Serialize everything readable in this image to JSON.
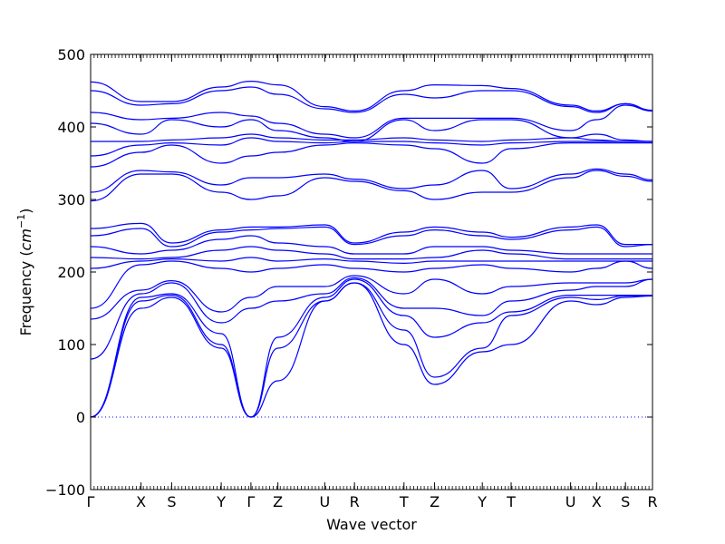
{
  "chart_data": {
    "type": "line",
    "title": "",
    "xlabel": "Wave vector",
    "ylabel_text": "Frequency (",
    "ylabel_unit_base": "cm",
    "ylabel_unit_exp": "−1",
    "ylabel_close": ")",
    "ylim": [
      -100,
      500
    ],
    "yticks": [
      -100,
      0,
      100,
      200,
      300,
      400,
      500
    ],
    "ytick_labels": [
      "−100",
      "0",
      "100",
      "200",
      "300",
      "400",
      "500"
    ],
    "high_symmetry_labels": [
      "Γ",
      "X",
      "S",
      "Y",
      "Γ",
      "Z",
      "U",
      "R",
      "T",
      "Z",
      "Y",
      "T",
      "U",
      "X",
      "S",
      "R"
    ],
    "high_symmetry_positions": [
      0,
      0.0897,
      0.1442,
      0.2324,
      0.2853,
      0.3333,
      0.4167,
      0.4696,
      0.5577,
      0.6122,
      0.6971,
      0.7484,
      0.8542,
      0.9006,
      0.9519,
      1.0
    ],
    "x_range": [
      0,
      1
    ],
    "zero_line": {
      "y": 0,
      "style": "dotted",
      "color": "#0000ff"
    },
    "band_color": "#0000ff",
    "grid": false,
    "series": [
      {
        "x": [
          0,
          0.0897,
          0.1442,
          0.2324,
          0.2853,
          0.3333,
          0.4167,
          0.4696,
          0.5577,
          0.6122,
          0.6971,
          0.7484,
          0.8542,
          0.9006,
          0.9519,
          1.0
        ],
        "values": [
          0,
          150,
          165,
          95,
          0,
          50,
          160,
          185,
          100,
          45,
          90,
          100,
          160,
          155,
          165,
          167
        ]
      },
      {
        "x": [
          0,
          0.0897,
          0.1442,
          0.2324,
          0.2853,
          0.3333,
          0.4167,
          0.4696,
          0.5577,
          0.6122,
          0.6971,
          0.7484,
          0.8542,
          0.9006,
          0.9519,
          1.0
        ],
        "values": [
          0,
          160,
          168,
          100,
          0,
          95,
          160,
          185,
          120,
          55,
          95,
          140,
          165,
          162,
          167,
          167
        ]
      },
      {
        "x": [
          0,
          0.0897,
          0.1442,
          0.2324,
          0.2853,
          0.3333,
          0.4167,
          0.4696,
          0.5577,
          0.6122,
          0.6971,
          0.7484,
          0.8542,
          0.9006,
          0.9519,
          1.0
        ],
        "values": [
          0,
          165,
          170,
          115,
          0,
          110,
          165,
          190,
          140,
          110,
          130,
          145,
          168,
          168,
          168,
          168
        ]
      },
      {
        "x": [
          0,
          0.0897,
          0.1442,
          0.2324,
          0.2853,
          0.3333,
          0.4167,
          0.4696,
          0.5577,
          0.6122,
          0.6971,
          0.7484,
          0.8542,
          0.9006,
          0.9519,
          1.0
        ],
        "values": [
          80,
          170,
          185,
          130,
          150,
          160,
          170,
          192,
          150,
          150,
          140,
          160,
          175,
          180,
          180,
          190
        ]
      },
      {
        "x": [
          0,
          0.0897,
          0.1442,
          0.2324,
          0.2853,
          0.3333,
          0.4167,
          0.4696,
          0.5577,
          0.6122,
          0.6971,
          0.7484,
          0.8542,
          0.9006,
          0.9519,
          1.0
        ],
        "values": [
          135,
          175,
          188,
          145,
          165,
          180,
          180,
          195,
          170,
          190,
          170,
          180,
          185,
          185,
          185,
          190
        ]
      },
      {
        "x": [
          0,
          0.0897,
          0.1442,
          0.2324,
          0.2853,
          0.3333,
          0.4167,
          0.4696,
          0.5577,
          0.6122,
          0.6971,
          0.7484,
          0.8542,
          0.9006,
          0.9519,
          1.0
        ],
        "values": [
          150,
          210,
          215,
          205,
          200,
          205,
          210,
          205,
          200,
          205,
          210,
          205,
          200,
          205,
          215,
          205
        ]
      },
      {
        "x": [
          0,
          0.0897,
          0.1442,
          0.2324,
          0.2853,
          0.3333,
          0.4167,
          0.4696,
          0.5577,
          0.6122,
          0.6971,
          0.7484,
          0.8542,
          0.9006,
          0.9519,
          1.0
        ],
        "values": [
          205,
          215,
          218,
          215,
          220,
          215,
          218,
          215,
          212,
          215,
          215,
          215,
          215,
          215,
          215,
          215
        ]
      },
      {
        "x": [
          0,
          0.0897,
          0.1442,
          0.2324,
          0.2853,
          0.3333,
          0.4167,
          0.4696,
          0.5577,
          0.6122,
          0.6971,
          0.7484,
          0.8542,
          0.9006,
          0.9519,
          1.0
        ],
        "values": [
          220,
          218,
          220,
          230,
          235,
          230,
          225,
          218,
          218,
          220,
          230,
          225,
          218,
          218,
          218,
          218
        ]
      },
      {
        "x": [
          0,
          0.0897,
          0.1442,
          0.2324,
          0.2853,
          0.3333,
          0.4167,
          0.4696,
          0.5577,
          0.6122,
          0.6971,
          0.7484,
          0.8542,
          0.9006,
          0.9519,
          1.0
        ],
        "values": [
          235,
          225,
          230,
          245,
          250,
          240,
          235,
          225,
          225,
          235,
          235,
          230,
          225,
          225,
          225,
          225
        ]
      },
      {
        "x": [
          0,
          0.0897,
          0.1442,
          0.2324,
          0.2853,
          0.3333,
          0.4167,
          0.4696,
          0.5577,
          0.6122,
          0.6971,
          0.7484,
          0.8542,
          0.9006,
          0.9519,
          1.0
        ],
        "values": [
          250,
          260,
          235,
          255,
          258,
          260,
          262,
          238,
          250,
          258,
          250,
          245,
          258,
          262,
          235,
          238
        ]
      },
      {
        "x": [
          0,
          0.0897,
          0.1442,
          0.2324,
          0.2853,
          0.3333,
          0.4167,
          0.4696,
          0.5577,
          0.6122,
          0.6971,
          0.7484,
          0.8542,
          0.9006,
          0.9519,
          1.0
        ],
        "values": [
          260,
          267,
          240,
          258,
          262,
          262,
          265,
          240,
          255,
          262,
          255,
          248,
          262,
          265,
          238,
          238
        ]
      },
      {
        "x": [
          0,
          0.0897,
          0.1442,
          0.2324,
          0.2853,
          0.3333,
          0.4167,
          0.4696,
          0.5577,
          0.6122,
          0.6971,
          0.7484,
          0.8542,
          0.9006,
          0.9519,
          1.0
        ],
        "values": [
          298,
          335,
          335,
          310,
          300,
          305,
          330,
          325,
          312,
          300,
          310,
          310,
          330,
          340,
          332,
          325
        ]
      },
      {
        "x": [
          0,
          0.0897,
          0.1442,
          0.2324,
          0.2853,
          0.3333,
          0.4167,
          0.4696,
          0.5577,
          0.6122,
          0.6971,
          0.7484,
          0.8542,
          0.9006,
          0.9519,
          1.0
        ],
        "values": [
          310,
          340,
          338,
          320,
          330,
          330,
          335,
          328,
          315,
          320,
          340,
          315,
          335,
          342,
          335,
          327
        ]
      },
      {
        "x": [
          0,
          0.0897,
          0.1442,
          0.2324,
          0.2853,
          0.3333,
          0.4167,
          0.4696,
          0.5577,
          0.6122,
          0.6971,
          0.7484,
          0.8542,
          0.9006,
          0.9519,
          1.0
        ],
        "values": [
          345,
          365,
          375,
          350,
          360,
          365,
          375,
          378,
          375,
          370,
          350,
          370,
          378,
          378,
          378,
          378
        ]
      },
      {
        "x": [
          0,
          0.0897,
          0.1442,
          0.2324,
          0.2853,
          0.3333,
          0.4167,
          0.4696,
          0.5577,
          0.6122,
          0.6971,
          0.7484,
          0.8542,
          0.9006,
          0.9519,
          1.0
        ],
        "values": [
          360,
          375,
          378,
          375,
          385,
          380,
          378,
          380,
          380,
          378,
          375,
          378,
          380,
          380,
          380,
          380
        ]
      },
      {
        "x": [
          0,
          0.0897,
          0.1442,
          0.2324,
          0.2853,
          0.3333,
          0.4167,
          0.4696,
          0.5577,
          0.6122,
          0.6971,
          0.7484,
          0.8542,
          0.9006,
          0.9519,
          1.0
        ],
        "values": [
          380,
          380,
          382,
          385,
          390,
          385,
          382,
          382,
          385,
          382,
          380,
          382,
          385,
          382,
          380,
          380
        ]
      },
      {
        "x": [
          0,
          0.0897,
          0.1442,
          0.2324,
          0.2853,
          0.3333,
          0.4167,
          0.4696,
          0.5577,
          0.6122,
          0.6971,
          0.7484,
          0.8542,
          0.9006,
          0.9519,
          1.0
        ],
        "values": [
          405,
          390,
          410,
          400,
          410,
          395,
          385,
          380,
          410,
          395,
          410,
          410,
          385,
          390,
          382,
          380
        ]
      },
      {
        "x": [
          0,
          0.0897,
          0.1442,
          0.2324,
          0.2853,
          0.3333,
          0.4167,
          0.4696,
          0.5577,
          0.6122,
          0.6971,
          0.7484,
          0.8542,
          0.9006,
          0.9519,
          1.0
        ],
        "values": [
          420,
          410,
          412,
          420,
          415,
          405,
          390,
          385,
          412,
          412,
          412,
          412,
          395,
          410,
          430,
          422
        ]
      },
      {
        "x": [
          0,
          0.0897,
          0.1442,
          0.2324,
          0.2853,
          0.3333,
          0.4167,
          0.4696,
          0.5577,
          0.6122,
          0.6971,
          0.7484,
          0.8542,
          0.9006,
          0.9519,
          1.0
        ],
        "values": [
          450,
          430,
          432,
          450,
          455,
          445,
          425,
          420,
          445,
          440,
          450,
          450,
          428,
          420,
          432,
          422
        ]
      },
      {
        "x": [
          0,
          0.0897,
          0.1442,
          0.2324,
          0.2853,
          0.3333,
          0.4167,
          0.4696,
          0.5577,
          0.6122,
          0.6971,
          0.7484,
          0.8542,
          0.9006,
          0.9519,
          1.0
        ],
        "values": [
          462,
          435,
          435,
          455,
          463,
          458,
          428,
          422,
          450,
          458,
          457,
          453,
          430,
          422,
          432,
          423
        ]
      }
    ]
  }
}
